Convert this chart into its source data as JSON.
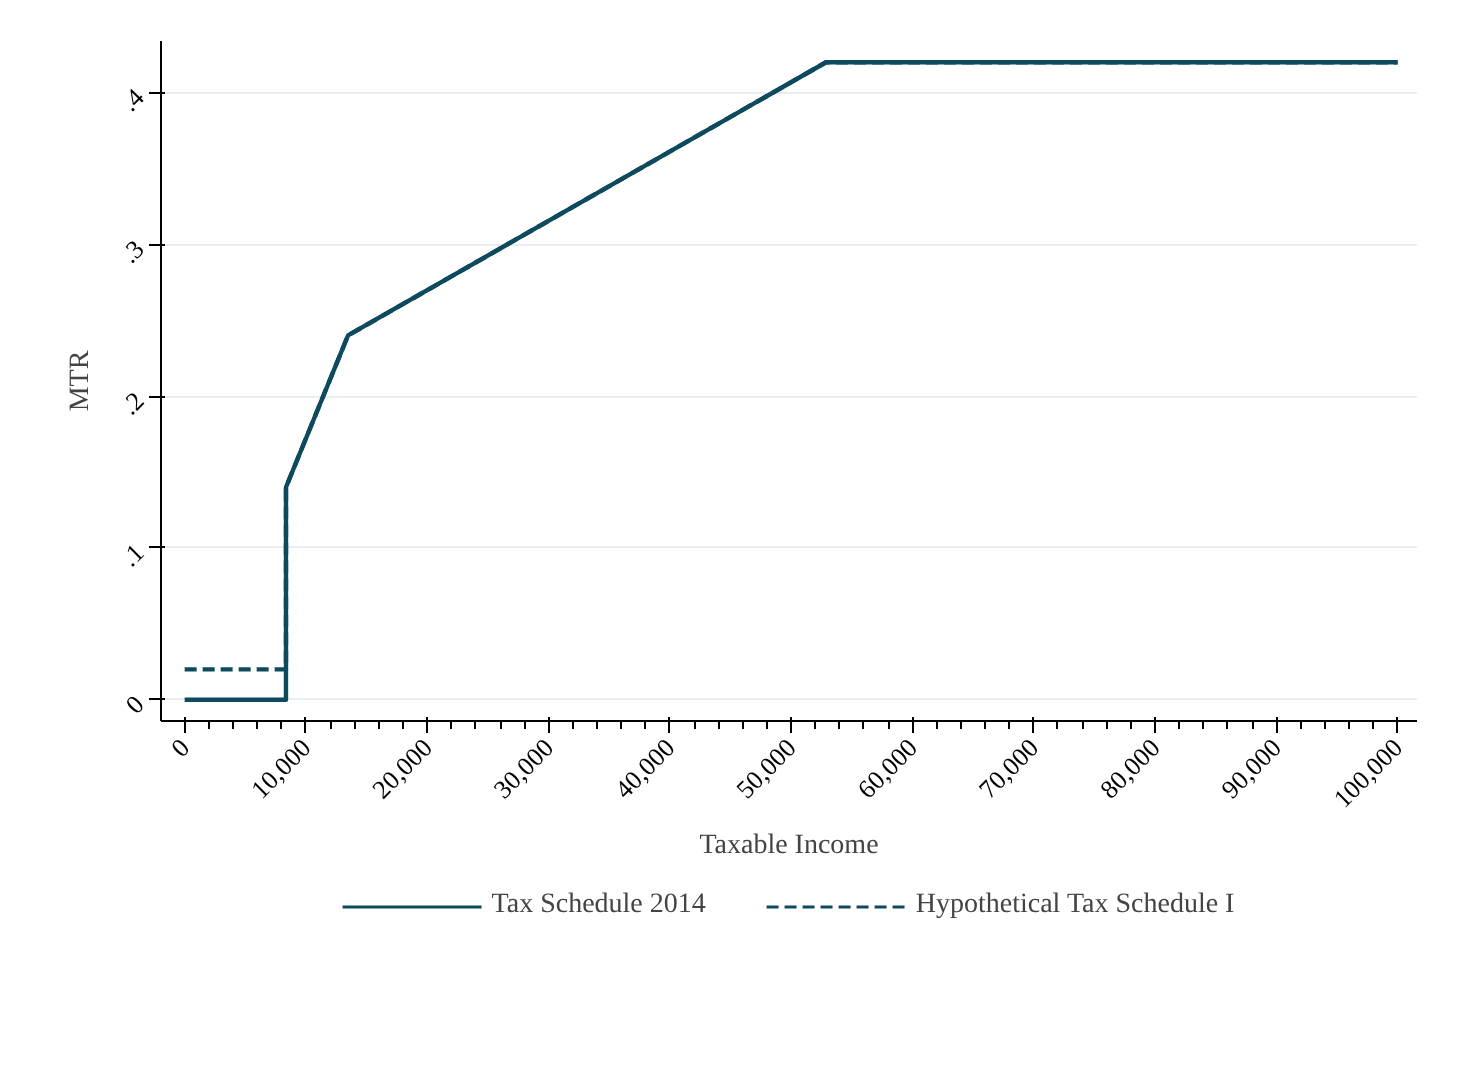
{
  "chart_data": {
    "type": "line",
    "xlabel": "Taxable Income",
    "ylabel": "MTR",
    "xlim": [
      -1950,
      101600
    ],
    "ylim": [
      -0.014,
      0.434
    ],
    "xticks": [
      0,
      {
        "value": 10000,
        "label": "10,000"
      },
      {
        "value": 20000,
        "label": "20,000"
      },
      {
        "value": 30000,
        "label": "30,000"
      },
      {
        "value": 40000,
        "label": "40,000"
      },
      {
        "value": 50000,
        "label": "50,000"
      },
      {
        "value": 60000,
        "label": "60,000"
      },
      {
        "value": 70000,
        "label": "70,000"
      },
      {
        "value": 80000,
        "label": "80,000"
      },
      {
        "value": 90000,
        "label": "90,000"
      },
      {
        "value": 100000,
        "label": "100,000"
      }
    ],
    "yticks": [
      0,
      {
        "value": 0.1,
        "label": ".1"
      },
      {
        "value": 0.2,
        "label": ".2"
      },
      {
        "value": 0.3,
        "label": ".3"
      },
      {
        "value": 0.4,
        "label": ".4"
      }
    ],
    "grid": "y",
    "legend": "bottom",
    "marker": "none",
    "series": [
      {
        "name": "Tax Schedule 2014",
        "color": "#0d4a5e",
        "line_style": "solid",
        "x": [
          0,
          8354,
          8354,
          13469,
          52881,
          100000
        ],
        "values": [
          0,
          0,
          0.14,
          0.24,
          0.42,
          0.42
        ]
      },
      {
        "name": "Hypothetical Tax Schedule I",
        "color": "#0d4a5e",
        "line_style": "dashed",
        "x": [
          0,
          8354,
          8354,
          13469,
          52881,
          100000
        ],
        "values": [
          0.02,
          0.02,
          0.14,
          0.24,
          0.42,
          0.42
        ]
      }
    ]
  }
}
